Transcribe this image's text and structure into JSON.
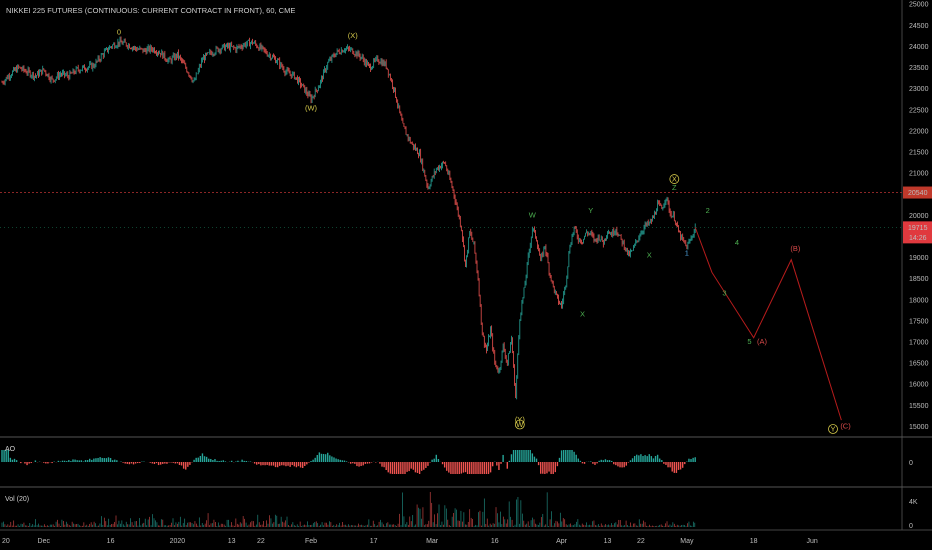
{
  "chart_data": {
    "type": "line",
    "title": "NIKKEI 225 FUTURES (CONTINUOUS: CURRENT CONTRACT IN FRONT), 60, CME",
    "price_axis": {
      "ylim": [
        14750,
        25100
      ],
      "ticks": [
        "25000",
        "24500",
        "24000",
        "23500",
        "23000",
        "22500",
        "22000",
        "21500",
        "21000",
        "20500",
        "20000",
        "19500",
        "19000",
        "18500",
        "18000",
        "17500",
        "17000",
        "16500",
        "16000",
        "15500",
        "15000"
      ]
    },
    "x_ticks": [
      {
        "label": "20",
        "i": 0
      },
      {
        "label": "Dec",
        "i": 10
      },
      {
        "label": "16",
        "i": 26
      },
      {
        "label": "2020",
        "i": 42
      },
      {
        "label": "13",
        "i": 55
      },
      {
        "label": "22",
        "i": 62
      },
      {
        "label": "Feb",
        "i": 74
      },
      {
        "label": "17",
        "i": 89
      },
      {
        "label": "Mar",
        "i": 103
      },
      {
        "label": "16",
        "i": 118
      },
      {
        "label": "Apr",
        "i": 134
      },
      {
        "label": "13",
        "i": 145
      },
      {
        "label": "22",
        "i": 153
      },
      {
        "label": "May",
        "i": 164
      },
      {
        "label": "18",
        "i": 180
      },
      {
        "label": "Jun",
        "i": 194
      }
    ],
    "x_total": 216,
    "price_series": [
      [
        0,
        23150
      ],
      [
        2,
        23350
      ],
      [
        4,
        23500
      ],
      [
        6,
        23400
      ],
      [
        8,
        23300
      ],
      [
        10,
        23450
      ],
      [
        12,
        23200
      ],
      [
        14,
        23350
      ],
      [
        16,
        23300
      ],
      [
        18,
        23450
      ],
      [
        20,
        23500
      ],
      [
        22,
        23550
      ],
      [
        24,
        23800
      ],
      [
        26,
        24000
      ],
      [
        28,
        24100
      ],
      [
        30,
        24050
      ],
      [
        32,
        23950
      ],
      [
        34,
        23900
      ],
      [
        36,
        23950
      ],
      [
        38,
        23850
      ],
      [
        40,
        23650
      ],
      [
        42,
        23800
      ],
      [
        44,
        23500
      ],
      [
        46,
        23150
      ],
      [
        48,
        23700
      ],
      [
        50,
        23850
      ],
      [
        52,
        23950
      ],
      [
        54,
        24000
      ],
      [
        56,
        23950
      ],
      [
        58,
        24050
      ],
      [
        60,
        24100
      ],
      [
        62,
        23950
      ],
      [
        64,
        23800
      ],
      [
        66,
        23650
      ],
      [
        68,
        23400
      ],
      [
        70,
        23300
      ],
      [
        72,
        23050
      ],
      [
        74,
        22750
      ],
      [
        76,
        23100
      ],
      [
        78,
        23600
      ],
      [
        80,
        23850
      ],
      [
        82,
        23950
      ],
      [
        84,
        23900
      ],
      [
        86,
        23750
      ],
      [
        88,
        23500
      ],
      [
        90,
        23700
      ],
      [
        92,
        23550
      ],
      [
        94,
        22950
      ],
      [
        96,
        22100
      ],
      [
        98,
        21700
      ],
      [
        100,
        21450
      ],
      [
        102,
        20650
      ],
      [
        104,
        21100
      ],
      [
        106,
        21250
      ],
      [
        108,
        20600
      ],
      [
        110,
        19700
      ],
      [
        111,
        18800
      ],
      [
        112,
        19600
      ],
      [
        113,
        19300
      ],
      [
        114,
        18500
      ],
      [
        115,
        17200
      ],
      [
        116,
        16800
      ],
      [
        117,
        17300
      ],
      [
        118,
        16500
      ],
      [
        119,
        16300
      ],
      [
        120,
        16900
      ],
      [
        121,
        16500
      ],
      [
        122,
        17100
      ],
      [
        123,
        15700
      ],
      [
        124,
        17600
      ],
      [
        125,
        18200
      ],
      [
        126,
        19000
      ],
      [
        127,
        19700
      ],
      [
        128,
        19450
      ],
      [
        129,
        18900
      ],
      [
        130,
        19300
      ],
      [
        131,
        18700
      ],
      [
        132,
        18300
      ],
      [
        133,
        18000
      ],
      [
        134,
        17850
      ],
      [
        135,
        18400
      ],
      [
        136,
        19300
      ],
      [
        137,
        19700
      ],
      [
        138,
        19450
      ],
      [
        139,
        19400
      ],
      [
        140,
        19600
      ],
      [
        141,
        19550
      ],
      [
        142,
        19400
      ],
      [
        143,
        19500
      ],
      [
        144,
        19350
      ],
      [
        145,
        19650
      ],
      [
        146,
        19550
      ],
      [
        147,
        19700
      ],
      [
        148,
        19450
      ],
      [
        149,
        19300
      ],
      [
        150,
        19050
      ],
      [
        151,
        19150
      ],
      [
        152,
        19400
      ],
      [
        153,
        19600
      ],
      [
        154,
        19750
      ],
      [
        155,
        19800
      ],
      [
        156,
        19950
      ],
      [
        157,
        20250
      ],
      [
        158,
        20150
      ],
      [
        159,
        20450
      ],
      [
        160,
        20050
      ],
      [
        161,
        19950
      ],
      [
        162,
        19600
      ],
      [
        163,
        19400
      ],
      [
        164,
        19250
      ],
      [
        165,
        19450
      ],
      [
        166,
        19715
      ]
    ],
    "projection": [
      [
        166,
        19715
      ],
      [
        170,
        18650
      ],
      [
        180,
        17100
      ],
      [
        189,
        18950
      ],
      [
        201,
        15150
      ]
    ],
    "price_line": {
      "value": 20540,
      "label": "20540"
    },
    "last_price": {
      "value": 19715,
      "label": "19715",
      "countdown": "14:26"
    },
    "colors": {
      "up": "#26a69a",
      "down": "#ef5350",
      "projection": "#b71c1c",
      "wave": "#d4c84a",
      "wave_red": "#d84a4a",
      "wave_green": "#4caf50"
    },
    "wave_labels": [
      {
        "text": "0",
        "i": 28,
        "p": 24280,
        "color": "#d4c84a"
      },
      {
        "text": "(X)",
        "i": 84,
        "p": 24200,
        "color": "#d4c84a"
      },
      {
        "text": "(W)",
        "i": 74,
        "p": 22480,
        "color": "#d4c84a"
      },
      {
        "text": "(Y)",
        "i": 124,
        "p": 15100,
        "color": "#d4c84a"
      },
      {
        "text": "W",
        "i": 124,
        "p": 24450,
        "color": "#d4c84a",
        "circle": true,
        "offset_pane": true
      },
      {
        "text": "W",
        "i": 127,
        "p": 19950,
        "color": "#4caf50"
      },
      {
        "text": "Y",
        "i": 141,
        "p": 20050,
        "color": "#4caf50"
      },
      {
        "text": "X",
        "i": 139,
        "p": 17600,
        "color": "#4caf50"
      },
      {
        "text": "X",
        "i": 155,
        "p": 19000,
        "color": "#4caf50"
      },
      {
        "text": "X",
        "i": 161,
        "p": 20800,
        "color": "#d4c84a",
        "circle": true
      },
      {
        "text": "Z",
        "i": 161,
        "p": 20600,
        "color": "#4caf50"
      },
      {
        "text": "1",
        "i": 164,
        "p": 19050,
        "color": "#4fa3e0"
      },
      {
        "text": "2",
        "i": 169,
        "p": 20050,
        "color": "#4caf50"
      },
      {
        "text": "3",
        "i": 173,
        "p": 18100,
        "color": "#4caf50"
      },
      {
        "text": "4",
        "i": 176,
        "p": 19300,
        "color": "#4caf50"
      },
      {
        "text": "5",
        "i": 179,
        "p": 16950,
        "color": "#4caf50"
      },
      {
        "text": "(A)",
        "i": 182,
        "p": 16950,
        "color": "#d84a4a"
      },
      {
        "text": "(B)",
        "i": 190,
        "p": 19150,
        "color": "#d84a4a"
      },
      {
        "text": "Y",
        "i": 199,
        "p": 14880,
        "color": "#d4c84a",
        "circle": true
      },
      {
        "text": "(C)",
        "i": 202,
        "p": 14950,
        "color": "#d84a4a"
      }
    ],
    "ao_pane": {
      "label": "AO",
      "ticks": [
        "0"
      ]
    },
    "vol_pane": {
      "label": "Vol (20)",
      "ticks": [
        "4K",
        "0"
      ]
    }
  }
}
